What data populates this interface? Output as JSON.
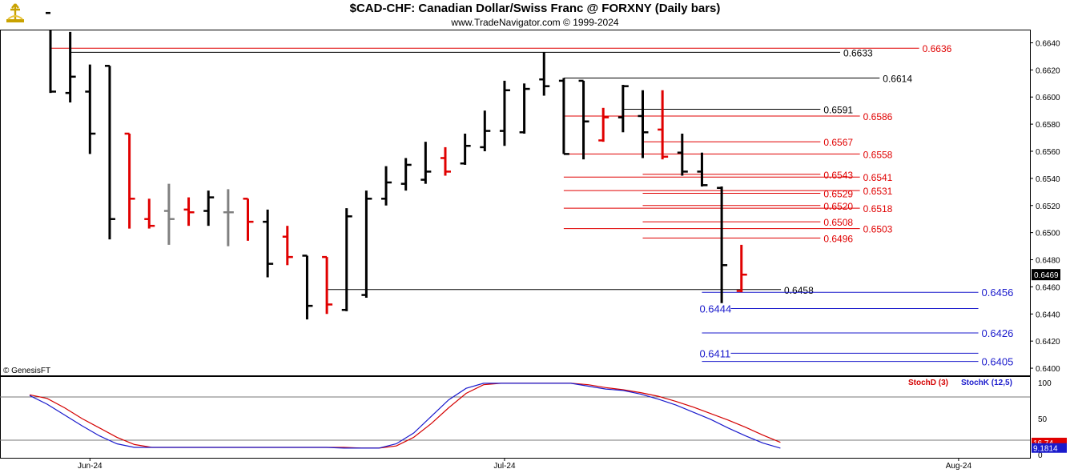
{
  "header": {
    "title": "$CAD-CHF:  Canadian Dollar/Swiss Franc @ FORXNY  (Daily bars)",
    "subtitle": "www.TradeNavigator.com © 1999-2024",
    "credit": "© GenesisFT"
  },
  "colors": {
    "up": "#000000",
    "down": "#e00000",
    "neutral": "#808080",
    "stochD": "#d40000",
    "stochK": "#1a1acc",
    "level_red": "#e00000",
    "level_black": "#000000",
    "level_blue": "#1a1acc"
  },
  "chart_data": [
    {
      "type": "ohlc",
      "title": "$CAD-CHF:  Canadian Dollar/Swiss Franc @ FORXNY  (Daily bars)",
      "ylim": [
        0.639,
        0.6645
      ],
      "yticks": [
        "0.6400",
        "0.6420",
        "0.6440",
        "0.6460",
        "0.6480",
        "0.6500",
        "0.6520",
        "0.6540",
        "0.6560",
        "0.6580",
        "0.6600",
        "0.6620",
        "0.6640"
      ],
      "x_labels": [
        {
          "label": "Jun-24",
          "index": 2
        },
        {
          "label": "Jul-24",
          "index": 23
        },
        {
          "label": "Aug-24",
          "index": 46
        }
      ],
      "last_price": "0.6469",
      "bars": [
        {
          "o": 0.6662,
          "h": 0.6662,
          "l": 0.6603,
          "c": 0.6604,
          "color": "up"
        },
        {
          "o": 0.6603,
          "h": 0.6648,
          "l": 0.6596,
          "c": 0.6615,
          "color": "up"
        },
        {
          "o": 0.6604,
          "h": 0.6624,
          "l": 0.6558,
          "c": 0.6573,
          "color": "up"
        },
        {
          "o": 0.6623,
          "h": 0.6623,
          "l": 0.6495,
          "c": 0.651,
          "color": "up"
        },
        {
          "o": 0.6573,
          "h": 0.6573,
          "l": 0.6503,
          "c": 0.6525,
          "color": "down"
        },
        {
          "o": 0.651,
          "h": 0.6525,
          "l": 0.6503,
          "c": 0.6505,
          "color": "down"
        },
        {
          "o": 0.6516,
          "h": 0.6536,
          "l": 0.6491,
          "c": 0.651,
          "color": "neutral"
        },
        {
          "o": 0.6517,
          "h": 0.6526,
          "l": 0.6505,
          "c": 0.6515,
          "color": "down"
        },
        {
          "o": 0.6516,
          "h": 0.6531,
          "l": 0.6505,
          "c": 0.6526,
          "color": "up"
        },
        {
          "o": 0.6515,
          "h": 0.6532,
          "l": 0.649,
          "c": 0.6515,
          "color": "neutral"
        },
        {
          "o": 0.6525,
          "h": 0.6525,
          "l": 0.6494,
          "c": 0.6508,
          "color": "down"
        },
        {
          "o": 0.6508,
          "h": 0.6517,
          "l": 0.6467,
          "c": 0.6477,
          "color": "up"
        },
        {
          "o": 0.6497,
          "h": 0.6505,
          "l": 0.6476,
          "c": 0.6482,
          "color": "down"
        },
        {
          "o": 0.6483,
          "h": 0.6483,
          "l": 0.6436,
          "c": 0.6446,
          "color": "up"
        },
        {
          "o": 0.6482,
          "h": 0.6482,
          "l": 0.644,
          "c": 0.6447,
          "color": "down"
        },
        {
          "o": 0.6443,
          "h": 0.6518,
          "l": 0.6442,
          "c": 0.6512,
          "color": "up"
        },
        {
          "o": 0.6454,
          "h": 0.6531,
          "l": 0.6452,
          "c": 0.6525,
          "color": "up"
        },
        {
          "o": 0.6525,
          "h": 0.6549,
          "l": 0.652,
          "c": 0.6537,
          "color": "up"
        },
        {
          "o": 0.6536,
          "h": 0.6555,
          "l": 0.6531,
          "c": 0.655,
          "color": "up"
        },
        {
          "o": 0.6539,
          "h": 0.6567,
          "l": 0.6536,
          "c": 0.6545,
          "color": "up"
        },
        {
          "o": 0.6555,
          "h": 0.6563,
          "l": 0.6542,
          "c": 0.6545,
          "color": "down"
        },
        {
          "o": 0.6551,
          "h": 0.6573,
          "l": 0.655,
          "c": 0.6564,
          "color": "up"
        },
        {
          "o": 0.6563,
          "h": 0.659,
          "l": 0.656,
          "c": 0.6575,
          "color": "up"
        },
        {
          "o": 0.6575,
          "h": 0.6612,
          "l": 0.6564,
          "c": 0.6605,
          "color": "up"
        },
        {
          "o": 0.6574,
          "h": 0.661,
          "l": 0.6573,
          "c": 0.6606,
          "color": "up"
        },
        {
          "o": 0.6613,
          "h": 0.6633,
          "l": 0.6601,
          "c": 0.6608,
          "color": "up"
        },
        {
          "o": 0.6612,
          "h": 0.6614,
          "l": 0.6558,
          "c": 0.6558,
          "color": "up"
        },
        {
          "o": 0.6612,
          "h": 0.6612,
          "l": 0.6554,
          "c": 0.6582,
          "color": "up"
        },
        {
          "o": 0.6568,
          "h": 0.6592,
          "l": 0.6567,
          "c": 0.6585,
          "color": "down"
        },
        {
          "o": 0.6585,
          "h": 0.6609,
          "l": 0.6574,
          "c": 0.6608,
          "color": "up"
        },
        {
          "o": 0.6586,
          "h": 0.6605,
          "l": 0.6555,
          "c": 0.6574,
          "color": "up"
        },
        {
          "o": 0.6576,
          "h": 0.6605,
          "l": 0.6554,
          "c": 0.6556,
          "color": "down"
        },
        {
          "o": 0.6559,
          "h": 0.6573,
          "l": 0.6542,
          "c": 0.6545,
          "color": "up"
        },
        {
          "o": 0.6545,
          "h": 0.6559,
          "l": 0.6534,
          "c": 0.6535,
          "color": "up"
        },
        {
          "o": 0.6533,
          "h": 0.6534,
          "l": 0.6448,
          "c": 0.6476,
          "color": "up"
        },
        {
          "o": 0.6457,
          "h": 0.6491,
          "l": 0.6456,
          "c": 0.6469,
          "color": "down"
        }
      ],
      "levels": [
        {
          "value": 0.6636,
          "label": "0.6636",
          "color": "level_red",
          "from": 0,
          "to": 44,
          "side": "right"
        },
        {
          "value": 0.6633,
          "label": "0.6633",
          "color": "level_black",
          "from": 1,
          "to": 40,
          "side": "right"
        },
        {
          "value": 0.6614,
          "label": "0.6614",
          "color": "level_black",
          "from": 26,
          "to": 42,
          "side": "right"
        },
        {
          "value": 0.6591,
          "label": "0.6591",
          "color": "level_black",
          "from": 29,
          "to": 39,
          "side": "right"
        },
        {
          "value": 0.6586,
          "label": "0.6586",
          "color": "level_red",
          "from": 26,
          "to": 41,
          "side": "right"
        },
        {
          "value": 0.6567,
          "label": "0.6567",
          "color": "level_red",
          "from": 30,
          "to": 39,
          "side": "right"
        },
        {
          "value": 0.6558,
          "label": "0.6558",
          "color": "level_red",
          "from": 26,
          "to": 41,
          "side": "right"
        },
        {
          "value": 0.6543,
          "label": "0.6543",
          "color": "level_red",
          "from": 30,
          "to": 39,
          "side": "right"
        },
        {
          "value": 0.6541,
          "label": "0.6541",
          "color": "level_red",
          "from": 26,
          "to": 41,
          "side": "right"
        },
        {
          "value": 0.6531,
          "label": "0.6531",
          "color": "level_red",
          "from": 26,
          "to": 41,
          "side": "right"
        },
        {
          "value": 0.6529,
          "label": "0.6529",
          "color": "level_red",
          "from": 30,
          "to": 39,
          "side": "right"
        },
        {
          "value": 0.652,
          "label": "0.6520",
          "color": "level_red",
          "from": 30,
          "to": 39,
          "side": "right"
        },
        {
          "value": 0.6518,
          "label": "0.6518",
          "color": "level_red",
          "from": 26,
          "to": 41,
          "side": "right"
        },
        {
          "value": 0.6508,
          "label": "0.6508",
          "color": "level_red",
          "from": 30,
          "to": 39,
          "side": "right"
        },
        {
          "value": 0.6503,
          "label": "0.6503",
          "color": "level_red",
          "from": 26,
          "to": 41,
          "side": "right"
        },
        {
          "value": 0.6496,
          "label": "0.6496",
          "color": "level_red",
          "from": 30,
          "to": 39,
          "side": "right"
        },
        {
          "value": 0.6458,
          "label": "0.6458",
          "color": "level_black",
          "from": 14,
          "to": 37,
          "side": "right"
        },
        {
          "value": 0.6456,
          "label": "0.6456",
          "color": "level_blue",
          "from": 33,
          "to": 47,
          "side": "right"
        },
        {
          "value": 0.6444,
          "label": "0.6444",
          "color": "level_blue",
          "from": 33,
          "to": 47,
          "side": "leftlabel"
        },
        {
          "value": 0.6426,
          "label": "0.6426",
          "color": "level_blue",
          "from": 33,
          "to": 47,
          "side": "right"
        },
        {
          "value": 0.6411,
          "label": "0.6411",
          "color": "level_blue",
          "from": 33,
          "to": 47,
          "side": "leftlabel"
        },
        {
          "value": 0.6405,
          "label": "0.6405",
          "color": "level_blue",
          "from": 33,
          "to": 47,
          "side": "right"
        }
      ]
    },
    {
      "type": "line",
      "ylim": [
        0,
        100
      ],
      "yticks": [
        "100",
        "50",
        "0"
      ],
      "reference_lines": [
        80,
        20
      ],
      "series": [
        {
          "name": "StochD (3)",
          "color": "stochD",
          "values": [
            83,
            78,
            65,
            50,
            37,
            24,
            14,
            10,
            10,
            10,
            10,
            10,
            10,
            10,
            10,
            10,
            10,
            10,
            10,
            9,
            9,
            12,
            24,
            43,
            65,
            85,
            97,
            99,
            99,
            99,
            99,
            99,
            97,
            93,
            90,
            86,
            81,
            74,
            66,
            57,
            48,
            38,
            27,
            17
          ]
        },
        {
          "name": "StochK (12,5)",
          "color": "stochK",
          "values": [
            82,
            70,
            55,
            40,
            26,
            15,
            10,
            10,
            10,
            10,
            10,
            10,
            10,
            10,
            10,
            10,
            10,
            10,
            9,
            9,
            9,
            15,
            30,
            53,
            76,
            92,
            99,
            99,
            99,
            99,
            99,
            99,
            95,
            91,
            89,
            84,
            77,
            69,
            59,
            49,
            37,
            26,
            16,
            9
          ]
        }
      ],
      "last_values": {
        "stochD": "16.74",
        "stochK": "9.1814"
      }
    }
  ]
}
